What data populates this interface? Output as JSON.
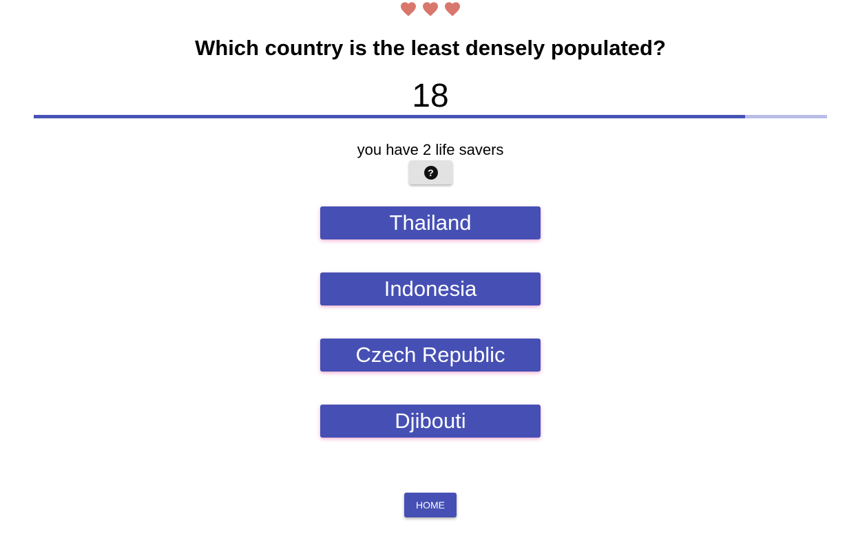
{
  "lives": {
    "count": 3,
    "icon": "heart-icon",
    "color": "#d9776d"
  },
  "question": {
    "text": "Which country is the least densely populated?"
  },
  "timer": {
    "value": "18",
    "progress_fraction": 0.897,
    "bar_color": "#4652b4",
    "track_color": "#b9bce6"
  },
  "lifesavers": {
    "text": "you have 2 life savers",
    "help_icon": "question-circle-icon",
    "help_glyph": "?"
  },
  "answers": [
    {
      "label": "Thailand"
    },
    {
      "label": "Indonesia"
    },
    {
      "label": "Czech Republic"
    },
    {
      "label": "Djibouti"
    }
  ],
  "home": {
    "label": "HOME"
  },
  "colors": {
    "primary": "#4650b4"
  }
}
